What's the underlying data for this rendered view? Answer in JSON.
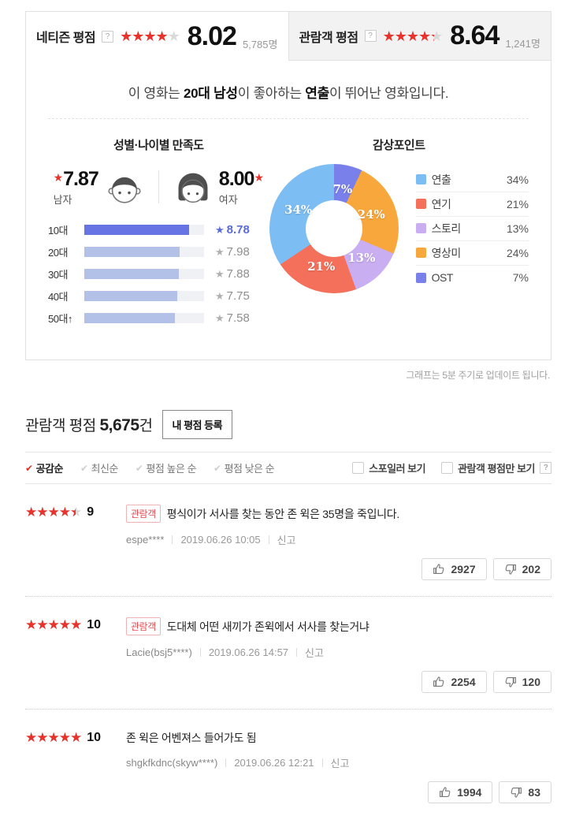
{
  "icons": {
    "star": "★",
    "check": "✔",
    "help": "?"
  },
  "tabs": {
    "netizen": {
      "label": "네티즌 평점",
      "score": "8.02",
      "count": "5,785명",
      "stars_pct": 80.2
    },
    "audience": {
      "label": "관람객 평점",
      "score": "8.64",
      "count": "1,241명",
      "stars_pct": 86.4
    }
  },
  "summary_segments": [
    {
      "text": "이 영화는 ",
      "bold": false
    },
    {
      "text": "20대 남성",
      "bold": true
    },
    {
      "text": "이 좋아하는 ",
      "bold": false
    },
    {
      "text": "연출",
      "bold": true
    },
    {
      "text": "이 뛰어난 영화입니다.",
      "bold": false
    }
  ],
  "satisfaction": {
    "title": "성별·나이별 만족도",
    "male": {
      "score": "7.87",
      "label": "남자"
    },
    "female": {
      "score": "8.00",
      "label": "여자"
    }
  },
  "chart_data": [
    {
      "type": "bar",
      "orientation": "horizontal",
      "title": "성별·나이별 만족도",
      "categories": [
        "10대",
        "20대",
        "30대",
        "40대",
        "50대↑"
      ],
      "values": [
        8.78,
        7.98,
        7.88,
        7.75,
        7.58
      ],
      "xlim": [
        0,
        10
      ],
      "highlight_index": 0,
      "bar_color": "#b3c0e7",
      "highlight_color": "#6674e4"
    },
    {
      "type": "pie",
      "donut": true,
      "title": "감상포인트",
      "categories": [
        "연출",
        "연기",
        "스토리",
        "영상미",
        "OST"
      ],
      "values": [
        34,
        21,
        13,
        24,
        7
      ],
      "unit": "%",
      "colors": {
        "연출": "#7cbdf4",
        "연기": "#f4705b",
        "스토리": "#c9aef2",
        "영상미": "#f8a73c",
        "OST": "#7a80ea"
      },
      "clockwise_from_top": [
        "OST",
        "영상미",
        "스토리",
        "연기",
        "연출"
      ],
      "legend_position": "right"
    }
  ],
  "footnote": "그래프는 5분 주기로 업데이트 됩니다.",
  "reviews_header": {
    "title": "관람객 평점",
    "count": "5,675",
    "unit": "건",
    "register": "내 평점 등록"
  },
  "sort_options": [
    {
      "label": "공감순",
      "active": true
    },
    {
      "label": "최신순",
      "active": false
    },
    {
      "label": "평점 높은 순",
      "active": false
    },
    {
      "label": "평점 낮은 순",
      "active": false
    }
  ],
  "filters": [
    {
      "label": "스포일러 보기",
      "help": false
    },
    {
      "label": "관람객 평점만 보기",
      "help": true
    }
  ],
  "reviews": [
    {
      "score": "9",
      "stars_pct": 90,
      "badge": "관람객",
      "text": "평식이가 서사를 찾는 동안 존 윅은 35명을 죽입니다.",
      "author": "espe****",
      "date": "2019.06.26 10:05",
      "report": "신고",
      "likes": "2927",
      "dislikes": "202"
    },
    {
      "score": "10",
      "stars_pct": 100,
      "badge": "관람객",
      "text": "도대체 어떤 새끼가 존윅에서 서사를 찾는거냐",
      "author": "Lacie(bsj5****)",
      "date": "2019.06.26 14:57",
      "report": "신고",
      "likes": "2254",
      "dislikes": "120"
    },
    {
      "score": "10",
      "stars_pct": 100,
      "badge": null,
      "text": "존 윅은 어벤져스 들어가도 됨",
      "author": "shgkfkdnc(skyw****)",
      "date": "2019.06.26 12:21",
      "report": "신고",
      "likes": "1994",
      "dislikes": "83"
    }
  ]
}
